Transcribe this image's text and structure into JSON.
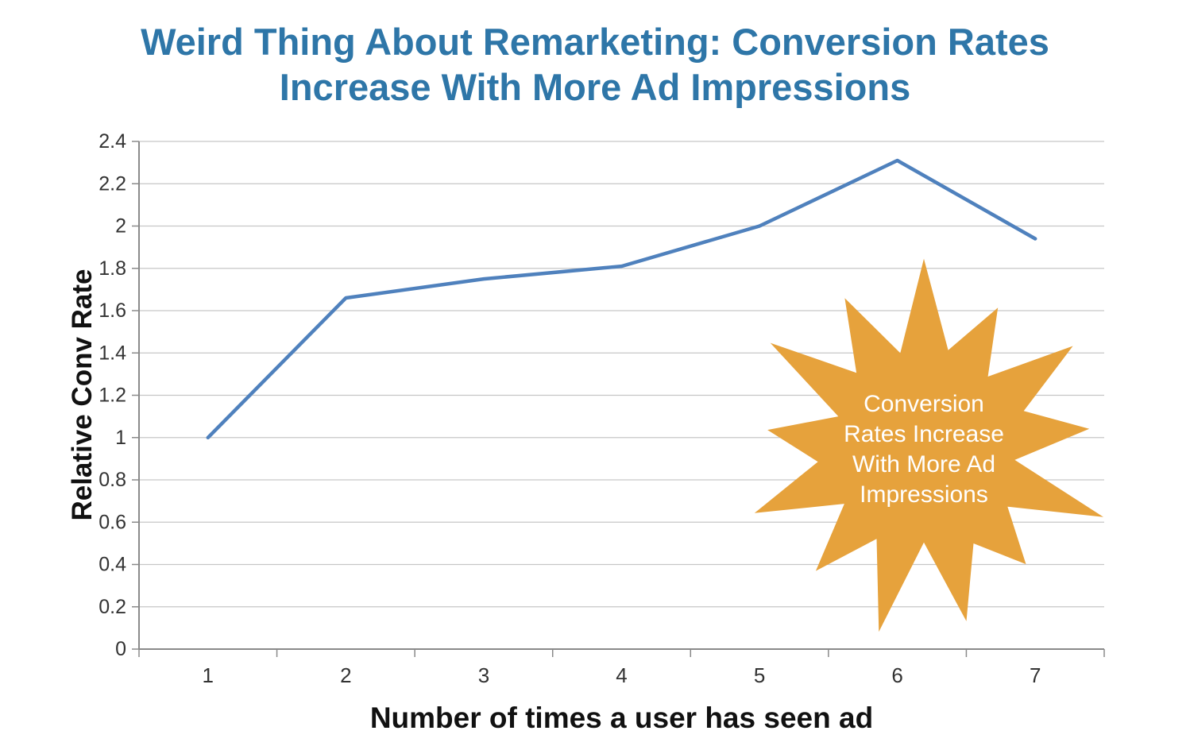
{
  "page": {
    "title_line1": "Weird Thing About Remarketing: Conversion Rates",
    "title_line2": "Increase With More Ad Impressions"
  },
  "colors": {
    "title": "#2e76a8",
    "line": "#4f81bd",
    "grid": "#c6c6c6",
    "axis": "#8a8a8a",
    "tick_label": "#333333",
    "axis_label": "#111111",
    "star_fill": "#e6a23c",
    "star_text": "#ffffff"
  },
  "chart_data": {
    "type": "line",
    "x": [
      1,
      2,
      3,
      4,
      5,
      6,
      7
    ],
    "series": [
      {
        "name": "Relative Conv Rate",
        "values": [
          1.0,
          1.66,
          1.75,
          1.81,
          2.0,
          2.31,
          1.94
        ]
      }
    ],
    "title": "Weird Thing About Remarketing: Conversion Rates Increase With More Ad Impressions",
    "xlabel": "Number of times a user has seen ad",
    "ylabel": "Relative Conv Rate",
    "ylim": [
      0,
      2.4
    ],
    "ytick_step": 0.2,
    "grid": "horizontal",
    "legend": "none",
    "annotation": {
      "shape": "starburst",
      "lines": [
        "Conversion",
        "Rates Increase",
        "With More Ad",
        "Impressions"
      ]
    }
  }
}
